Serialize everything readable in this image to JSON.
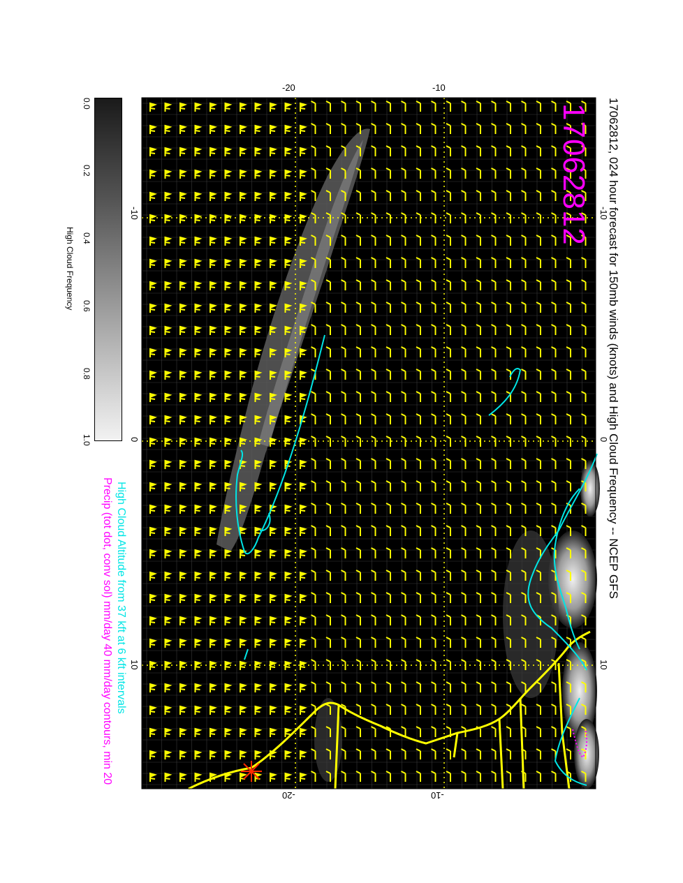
{
  "title": "17062812, 024 hour forecast for 150mb winds (knots) and High Cloud Frequency -- NCEP GFS",
  "big_date": "17062812",
  "legend": {
    "cyan_line": "High Cloud Altitude from 37 kft at 6 kft intervals",
    "magenta_line": "Precip (tot dot, conv sol) mm/day 40 mm/day contours, min 20"
  },
  "colorbar": {
    "title": "High Cloud Frequency",
    "ticks": [
      "0.0",
      "0.2",
      "0.4",
      "0.6",
      "0.8",
      "1.0"
    ]
  },
  "axes": {
    "top_ticks": [
      "-20",
      "-10"
    ],
    "bottom_ticks": [
      "-20",
      "-10"
    ],
    "left_ticks": [
      "-10",
      "0",
      "10"
    ],
    "right_ticks": [
      "-10",
      "0",
      "10"
    ]
  },
  "colors": {
    "background": "#000000",
    "barbs": "#ffff00",
    "coast": "#ffff00",
    "contour_cyan": "#00e5e5",
    "contour_magenta": "#ff00ff",
    "marker": "#ff0000",
    "gridlines": "#ffff00"
  },
  "icons": {
    "station_marker": "red-asterisk-icon"
  }
}
